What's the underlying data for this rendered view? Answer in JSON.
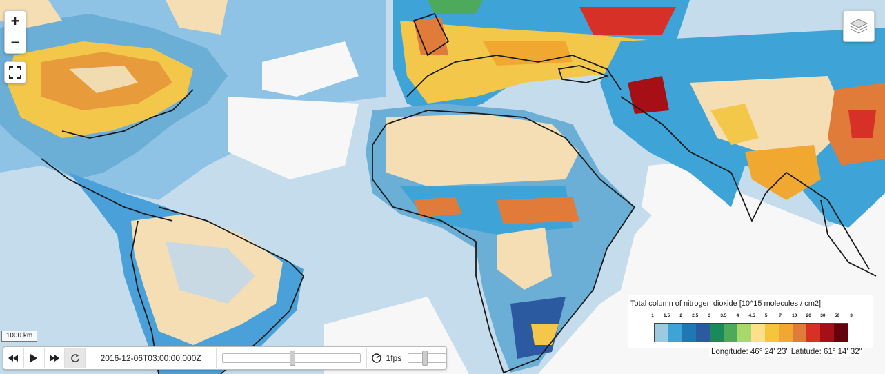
{
  "map": {
    "colors": {
      "ocean_background": "#f7f7f7",
      "coast": "#1a1a1a"
    }
  },
  "controls": {
    "zoom_in": "+",
    "zoom_out": "−",
    "fullscreen_icon": "fullscreen-icon",
    "layers_icon": "layers-icon"
  },
  "scale": {
    "label": "1000 km"
  },
  "timebar": {
    "time": "2016-12-06T03:00:00.000Z",
    "fps": "1fps",
    "time_position": 0.5,
    "speed_position": 0.4
  },
  "legend": {
    "title": "Total column of nitrogen dioxide [10^15 molecules / cm2]",
    "ticks": [
      "1",
      "1.5",
      "2",
      "2.5",
      "3",
      "3.5",
      "4",
      "4.5",
      "5",
      "7",
      "10",
      "20",
      "30",
      "50",
      "3"
    ],
    "colors": [
      "#9ecae1",
      "#3ea3d6",
      "#1f78b4",
      "#2c5aa0",
      "#1b8a5a",
      "#4daa5a",
      "#a6d96a",
      "#fee08b",
      "#f5c63a",
      "#f0a830",
      "#e07b39",
      "#d73027",
      "#a50f15",
      "#67000d"
    ]
  },
  "coords": {
    "text": "Longitude: 46° 24' 23\"  Latitude: 61° 14' 32\""
  }
}
